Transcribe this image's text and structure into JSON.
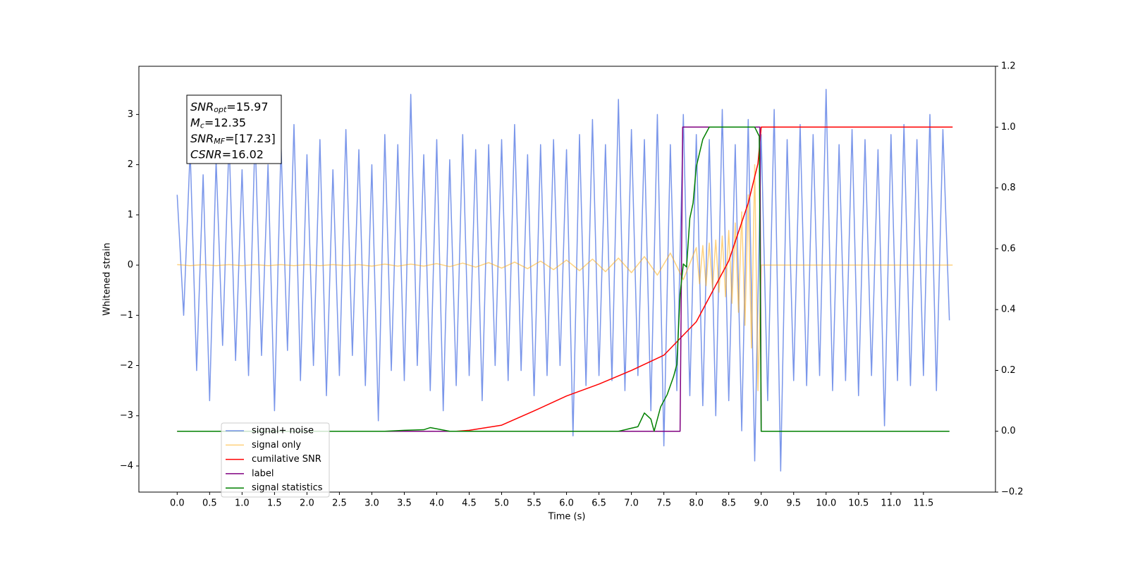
{
  "chart_data": {
    "type": "line",
    "xlabel": "Time (s)",
    "ylabel": "Whitened strain",
    "xlim": [
      -0.59,
      12.61
    ],
    "ylim": [
      -4.52,
      3.96
    ],
    "y2lim": [
      -0.2,
      1.2
    ],
    "xticks": [
      {
        "value": 0,
        "label": "0.0"
      },
      0.5,
      {
        "value": 1,
        "label": "1.0"
      },
      1.5,
      {
        "value": 2,
        "label": "2.0"
      },
      2.5,
      {
        "value": 3,
        "label": "3.0"
      },
      3.5,
      {
        "value": 4,
        "label": "4.0"
      },
      4.5,
      {
        "value": 5,
        "label": "5.0"
      },
      5.5,
      {
        "value": 6,
        "label": "6.0"
      },
      6.5,
      {
        "value": 7,
        "label": "7.0"
      },
      7.5,
      {
        "value": 8,
        "label": "8.0"
      },
      8.5,
      {
        "value": 9,
        "label": "9.0"
      },
      9.5,
      {
        "value": 10,
        "label": "10.0"
      },
      10.5,
      {
        "value": 11,
        "label": "11.0"
      },
      11.5
    ],
    "yticks": [
      {
        "value": -4,
        "label": "−4"
      },
      {
        "value": -3,
        "label": "−3"
      },
      {
        "value": -2,
        "label": "−2"
      },
      {
        "value": -1,
        "label": "−1"
      },
      0,
      1,
      2,
      3
    ],
    "y2ticks": [
      {
        "value": -0.2,
        "label": "−0.2"
      },
      {
        "value": 0,
        "label": "0.0"
      },
      0.2,
      0.4,
      0.6,
      0.8,
      {
        "value": 1,
        "label": "1.0"
      },
      1.2
    ],
    "annotation": [
      {
        "base": "SNR",
        "sub": "opt",
        "text": "=15.97"
      },
      {
        "base": "M",
        "sub": "c",
        "text": "=12.35"
      },
      {
        "base": "SNR",
        "sub": "MF",
        "text": "=[17.23]"
      },
      {
        "base": "CSNR",
        "sub": "",
        "text": "=16.02"
      }
    ],
    "legend": "lower left",
    "series": [
      {
        "name": "signal+ noise",
        "color": "#4169e1",
        "opacity": 0.7,
        "axis": "y",
        "x": [
          0,
          0.1,
          0.2,
          0.3,
          0.4,
          0.5,
          0.6,
          0.7,
          0.8,
          0.9,
          1,
          1.1,
          1.2,
          1.3,
          1.4,
          1.5,
          1.6,
          1.7,
          1.8,
          1.9,
          2,
          2.1,
          2.2,
          2.3,
          2.4,
          2.5,
          2.6,
          2.7,
          2.8,
          2.9,
          3,
          3.1,
          3.2,
          3.3,
          3.4,
          3.5,
          3.6,
          3.7,
          3.8,
          3.9,
          4,
          4.1,
          4.2,
          4.3,
          4.4,
          4.5,
          4.6,
          4.7,
          4.8,
          4.9,
          5,
          5.1,
          5.2,
          5.3,
          5.4,
          5.5,
          5.6,
          5.7,
          5.8,
          5.9,
          6,
          6.1,
          6.2,
          6.3,
          6.4,
          6.5,
          6.6,
          6.7,
          6.8,
          6.9,
          7,
          7.1,
          7.2,
          7.3,
          7.4,
          7.5,
          7.6,
          7.7,
          7.8,
          7.9,
          8,
          8.1,
          8.2,
          8.3,
          8.4,
          8.5,
          8.6,
          8.7,
          8.8,
          8.9,
          9,
          9.1,
          9.2,
          9.3,
          9.4,
          9.5,
          9.6,
          9.7,
          9.8,
          9.9,
          10,
          10.1,
          10.2,
          10.3,
          10.4,
          10.5,
          10.6,
          10.7,
          10.8,
          10.9,
          11,
          11.1,
          11.2,
          11.3,
          11.4,
          11.5,
          11.6,
          11.7,
          11.8,
          11.9
        ],
        "values": [
          1.4,
          -1.0,
          2.3,
          -2.1,
          1.8,
          -2.7,
          2.1,
          -1.6,
          2.5,
          -1.9,
          1.9,
          -2.2,
          2.6,
          -1.8,
          2.0,
          -2.9,
          2.4,
          -1.7,
          2.8,
          -2.3,
          2.2,
          -2.0,
          2.5,
          -2.6,
          1.9,
          -2.2,
          2.7,
          -1.8,
          2.3,
          -2.4,
          2.0,
          -3.1,
          2.6,
          -2.1,
          2.4,
          -2.3,
          3.4,
          -2.0,
          2.2,
          -2.5,
          2.5,
          -2.9,
          2.1,
          -2.4,
          2.6,
          -2.2,
          2.3,
          -2.7,
          2.4,
          -2.0,
          2.5,
          -2.3,
          2.8,
          -2.1,
          2.2,
          -2.6,
          2.4,
          -2.2,
          2.5,
          -2.0,
          2.3,
          -3.4,
          2.6,
          -2.4,
          2.9,
          -2.2,
          2.4,
          -2.3,
          3.3,
          -2.5,
          2.7,
          -2.2,
          2.5,
          -2.9,
          3.0,
          -3.6,
          2.4,
          -2.5,
          3.0,
          -2.6,
          2.6,
          -2.8,
          2.5,
          -3.0,
          3.1,
          -2.7,
          2.4,
          -3.3,
          2.9,
          -3.9,
          2.6,
          -2.7,
          3.1,
          -4.1,
          2.5,
          -2.3,
          2.8,
          -2.4,
          2.6,
          -2.2,
          3.5,
          -2.5,
          2.4,
          -2.3,
          2.7,
          -2.6,
          2.5,
          -2.2,
          2.3,
          -3.2,
          2.6,
          -2.3,
          2.8,
          -2.4,
          2.5,
          -2.2,
          3.0,
          -2.5,
          2.7,
          -1.1
        ]
      },
      {
        "name": "signal only",
        "color": "#ffa500",
        "opacity": 0.5,
        "axis": "y",
        "x": [
          0,
          0.2,
          0.4,
          0.6,
          0.8,
          1,
          1.2,
          1.4,
          1.6,
          1.8,
          2,
          2.2,
          2.4,
          2.6,
          2.8,
          3,
          3.2,
          3.4,
          3.6,
          3.8,
          4,
          4.2,
          4.4,
          4.6,
          4.8,
          5,
          5.2,
          5.4,
          5.6,
          5.8,
          6,
          6.2,
          6.4,
          6.6,
          6.8,
          7,
          7.2,
          7.4,
          7.6,
          7.8,
          8,
          8.05,
          8.1,
          8.15,
          8.2,
          8.25,
          8.3,
          8.35,
          8.4,
          8.45,
          8.5,
          8.55,
          8.6,
          8.65,
          8.7,
          8.75,
          8.8,
          8.85,
          8.9,
          8.95,
          9,
          10,
          11,
          11.95
        ],
        "values": [
          0.01,
          -0.01,
          0.01,
          -0.01,
          0.01,
          -0.01,
          0.01,
          -0.01,
          0.01,
          -0.01,
          0.01,
          -0.01,
          0.01,
          -0.01,
          0.01,
          -0.02,
          0.02,
          -0.02,
          0.02,
          -0.02,
          0.03,
          -0.03,
          0.04,
          -0.04,
          0.05,
          -0.06,
          0.06,
          -0.07,
          0.08,
          -0.09,
          0.1,
          -0.11,
          0.12,
          -0.13,
          0.14,
          -0.15,
          0.17,
          -0.2,
          0.24,
          -0.29,
          0.35,
          -0.37,
          0.39,
          -0.41,
          0.44,
          -0.47,
          0.5,
          -0.54,
          0.58,
          -0.63,
          0.69,
          -0.76,
          0.84,
          -0.94,
          1.06,
          -1.2,
          1.4,
          -1.65,
          2.0,
          -2.5,
          0,
          0,
          0,
          0
        ]
      },
      {
        "name": "cumilative SNR",
        "color": "#ff0000",
        "opacity": 1,
        "axis": "y2",
        "x": [
          0,
          4.3,
          4.5,
          5,
          5.5,
          6,
          6.5,
          7,
          7.5,
          8,
          8.5,
          8.8,
          8.95,
          9,
          11.95
        ],
        "values": [
          0,
          0,
          0.003,
          0.02,
          0.067,
          0.116,
          0.155,
          0.2,
          0.25,
          0.36,
          0.56,
          0.75,
          0.88,
          1,
          1
        ]
      },
      {
        "name": "label",
        "color": "#800080",
        "opacity": 1,
        "axis": "y2",
        "x": [
          0,
          7.75,
          7.79,
          8.98,
          9,
          11.9
        ],
        "values": [
          0,
          0,
          1,
          1,
          0,
          0
        ]
      },
      {
        "name": "signal statistics",
        "color": "#008000",
        "opacity": 1,
        "axis": "y2",
        "x": [
          0,
          3.2,
          3.5,
          3.8,
          3.9,
          4.0,
          4.2,
          6.8,
          7.0,
          7.1,
          7.2,
          7.3,
          7.35,
          7.45,
          7.55,
          7.65,
          7.7,
          7.75,
          7.8,
          7.85,
          7.9,
          7.95,
          8.0,
          8.1,
          8.2,
          8.9,
          8.97,
          9.0,
          11.9
        ],
        "values": [
          0,
          0,
          0.003,
          0.005,
          0.012,
          0.008,
          0,
          0,
          0.01,
          0.015,
          0.06,
          0.04,
          0,
          0.08,
          0.12,
          0.18,
          0.22,
          0.45,
          0.55,
          0.54,
          0.7,
          0.75,
          0.87,
          0.96,
          1,
          1,
          0.97,
          0,
          0
        ]
      }
    ]
  }
}
